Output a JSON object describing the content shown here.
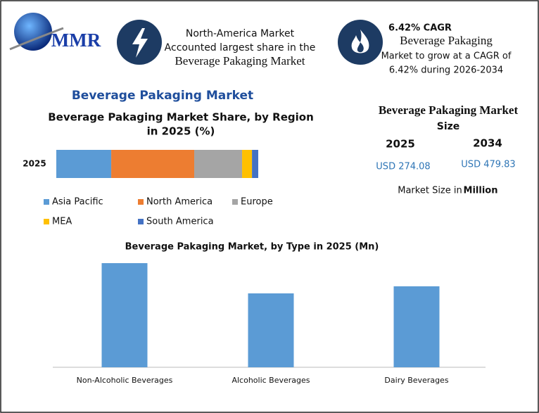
{
  "header": {
    "logo": "MMR",
    "info_1": [
      "North-America Market",
      "Accounted largest share in the",
      "Beverage Pakaging Market"
    ],
    "info_2": {
      "title": "6.42% CAGR",
      "lines": [
        "Beverage Pakaging",
        "Market to grow at a CAGR of",
        "6.42% during 2026-2034"
      ]
    }
  },
  "section_title": "Beverage Pakaging Market",
  "market_size": {
    "title": [
      "Beverage Pakaging Market",
      "Size"
    ],
    "years": [
      "2025",
      "2034"
    ],
    "values": [
      "USD 274.08",
      "USD 479.83"
    ],
    "note": [
      "Market Size in",
      "Million"
    ]
  },
  "chart_data": [
    {
      "type": "stacked-bar",
      "orientation": "horizontal",
      "title": [
        "Beverage Pakaging Market Share, by Region",
        "in 2025 (%)"
      ],
      "categories": [
        "2025"
      ],
      "series": [
        {
          "name": "Asia Pacific",
          "color": "#5b9bd5",
          "values": [
            27.2
          ]
        },
        {
          "name": "North America",
          "color": "#ed7d31",
          "values": [
            41.1
          ]
        },
        {
          "name": "Europe",
          "color": "#a5a5a5",
          "values": [
            23.7
          ]
        },
        {
          "name": "MEA",
          "color": "#ffc000",
          "values": [
            4.9
          ]
        },
        {
          "name": "South America",
          "color": "#4472c4",
          "values": [
            3.1
          ]
        }
      ],
      "legend": "bottom"
    },
    {
      "type": "bar",
      "title": "Beverage Pakaging Market, by Type in 2025 (Mn)",
      "categories": [
        "Non-Alcoholic Beverages",
        "Alcoholic Beverages",
        "Dairy Beverages"
      ],
      "values": [
        110.2,
        78.2,
        85.7
      ],
      "color": "#5b9bd5"
    }
  ]
}
